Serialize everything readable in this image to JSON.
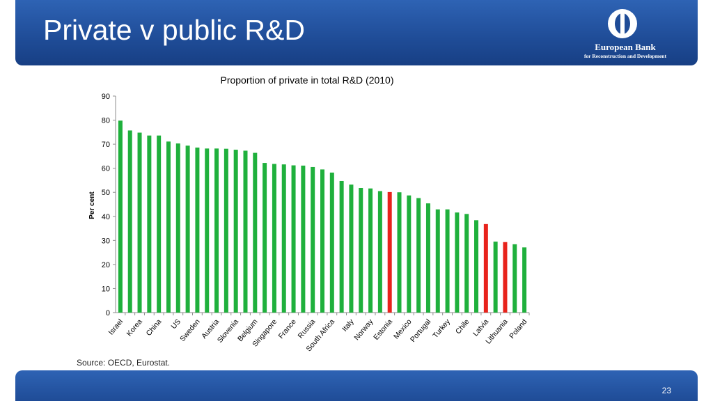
{
  "slide": {
    "title": "Private v public R&D",
    "logo": {
      "name": "European Bank",
      "subtitle": "for Reconstruction and Development"
    },
    "source": "Source: OECD, Eurostat.",
    "page_number": "23",
    "colors": {
      "header": "#1f4c97",
      "bar_default": "#1fb03c",
      "bar_highlight": "#e8231c"
    }
  },
  "chart_data": {
    "type": "bar",
    "title": "Proportion of private in total R&D (2010)",
    "ylabel": "Per cent",
    "xlabel": "",
    "ylim": [
      0,
      90
    ],
    "yticks": [
      0,
      10,
      20,
      30,
      40,
      50,
      60,
      70,
      80,
      90
    ],
    "grid": false,
    "legend": "none",
    "bars": [
      {
        "label": "Israel",
        "value": 79.8,
        "highlight": false
      },
      {
        "label": "",
        "value": 75.7,
        "highlight": false
      },
      {
        "label": "Korea",
        "value": 74.8,
        "highlight": false
      },
      {
        "label": "",
        "value": 73.6,
        "highlight": false
      },
      {
        "label": "China",
        "value": 73.6,
        "highlight": false
      },
      {
        "label": "",
        "value": 71.1,
        "highlight": false
      },
      {
        "label": "US",
        "value": 70.3,
        "highlight": false
      },
      {
        "label": "",
        "value": 69.4,
        "highlight": false
      },
      {
        "label": "Sweden",
        "value": 68.6,
        "highlight": false
      },
      {
        "label": "",
        "value": 68.2,
        "highlight": false
      },
      {
        "label": "Austria",
        "value": 68.2,
        "highlight": false
      },
      {
        "label": "",
        "value": 68.1,
        "highlight": false
      },
      {
        "label": "Slovenia",
        "value": 67.7,
        "highlight": false
      },
      {
        "label": "",
        "value": 67.3,
        "highlight": false
      },
      {
        "label": "Belgium",
        "value": 66.4,
        "highlight": false
      },
      {
        "label": "",
        "value": 62.2,
        "highlight": false
      },
      {
        "label": "Singapore",
        "value": 61.8,
        "highlight": false
      },
      {
        "label": "",
        "value": 61.6,
        "highlight": false
      },
      {
        "label": "France",
        "value": 61.2,
        "highlight": false
      },
      {
        "label": "",
        "value": 61.1,
        "highlight": false
      },
      {
        "label": "Russia",
        "value": 60.5,
        "highlight": false
      },
      {
        "label": "",
        "value": 59.5,
        "highlight": false
      },
      {
        "label": "South Africa",
        "value": 58.2,
        "highlight": false
      },
      {
        "label": "",
        "value": 54.7,
        "highlight": false
      },
      {
        "label": "Italy",
        "value": 53.2,
        "highlight": false
      },
      {
        "label": "",
        "value": 51.8,
        "highlight": false
      },
      {
        "label": "Norway",
        "value": 51.6,
        "highlight": false
      },
      {
        "label": "",
        "value": 50.5,
        "highlight": false
      },
      {
        "label": "Estonia",
        "value": 50.1,
        "highlight": true
      },
      {
        "label": "",
        "value": 50.0,
        "highlight": false
      },
      {
        "label": "Mexico",
        "value": 48.7,
        "highlight": false
      },
      {
        "label": "",
        "value": 47.6,
        "highlight": false
      },
      {
        "label": "Portugal",
        "value": 45.4,
        "highlight": false
      },
      {
        "label": "",
        "value": 42.9,
        "highlight": false
      },
      {
        "label": "Turkey",
        "value": 42.9,
        "highlight": false
      },
      {
        "label": "",
        "value": 41.6,
        "highlight": false
      },
      {
        "label": "Chile",
        "value": 41.0,
        "highlight": false
      },
      {
        "label": "",
        "value": 38.4,
        "highlight": false
      },
      {
        "label": "Latvia",
        "value": 36.8,
        "highlight": true
      },
      {
        "label": "",
        "value": 29.5,
        "highlight": false
      },
      {
        "label": "Lithuania",
        "value": 29.3,
        "highlight": true
      },
      {
        "label": "",
        "value": 28.4,
        "highlight": false
      },
      {
        "label": "Poland",
        "value": 27.1,
        "highlight": false
      }
    ]
  }
}
